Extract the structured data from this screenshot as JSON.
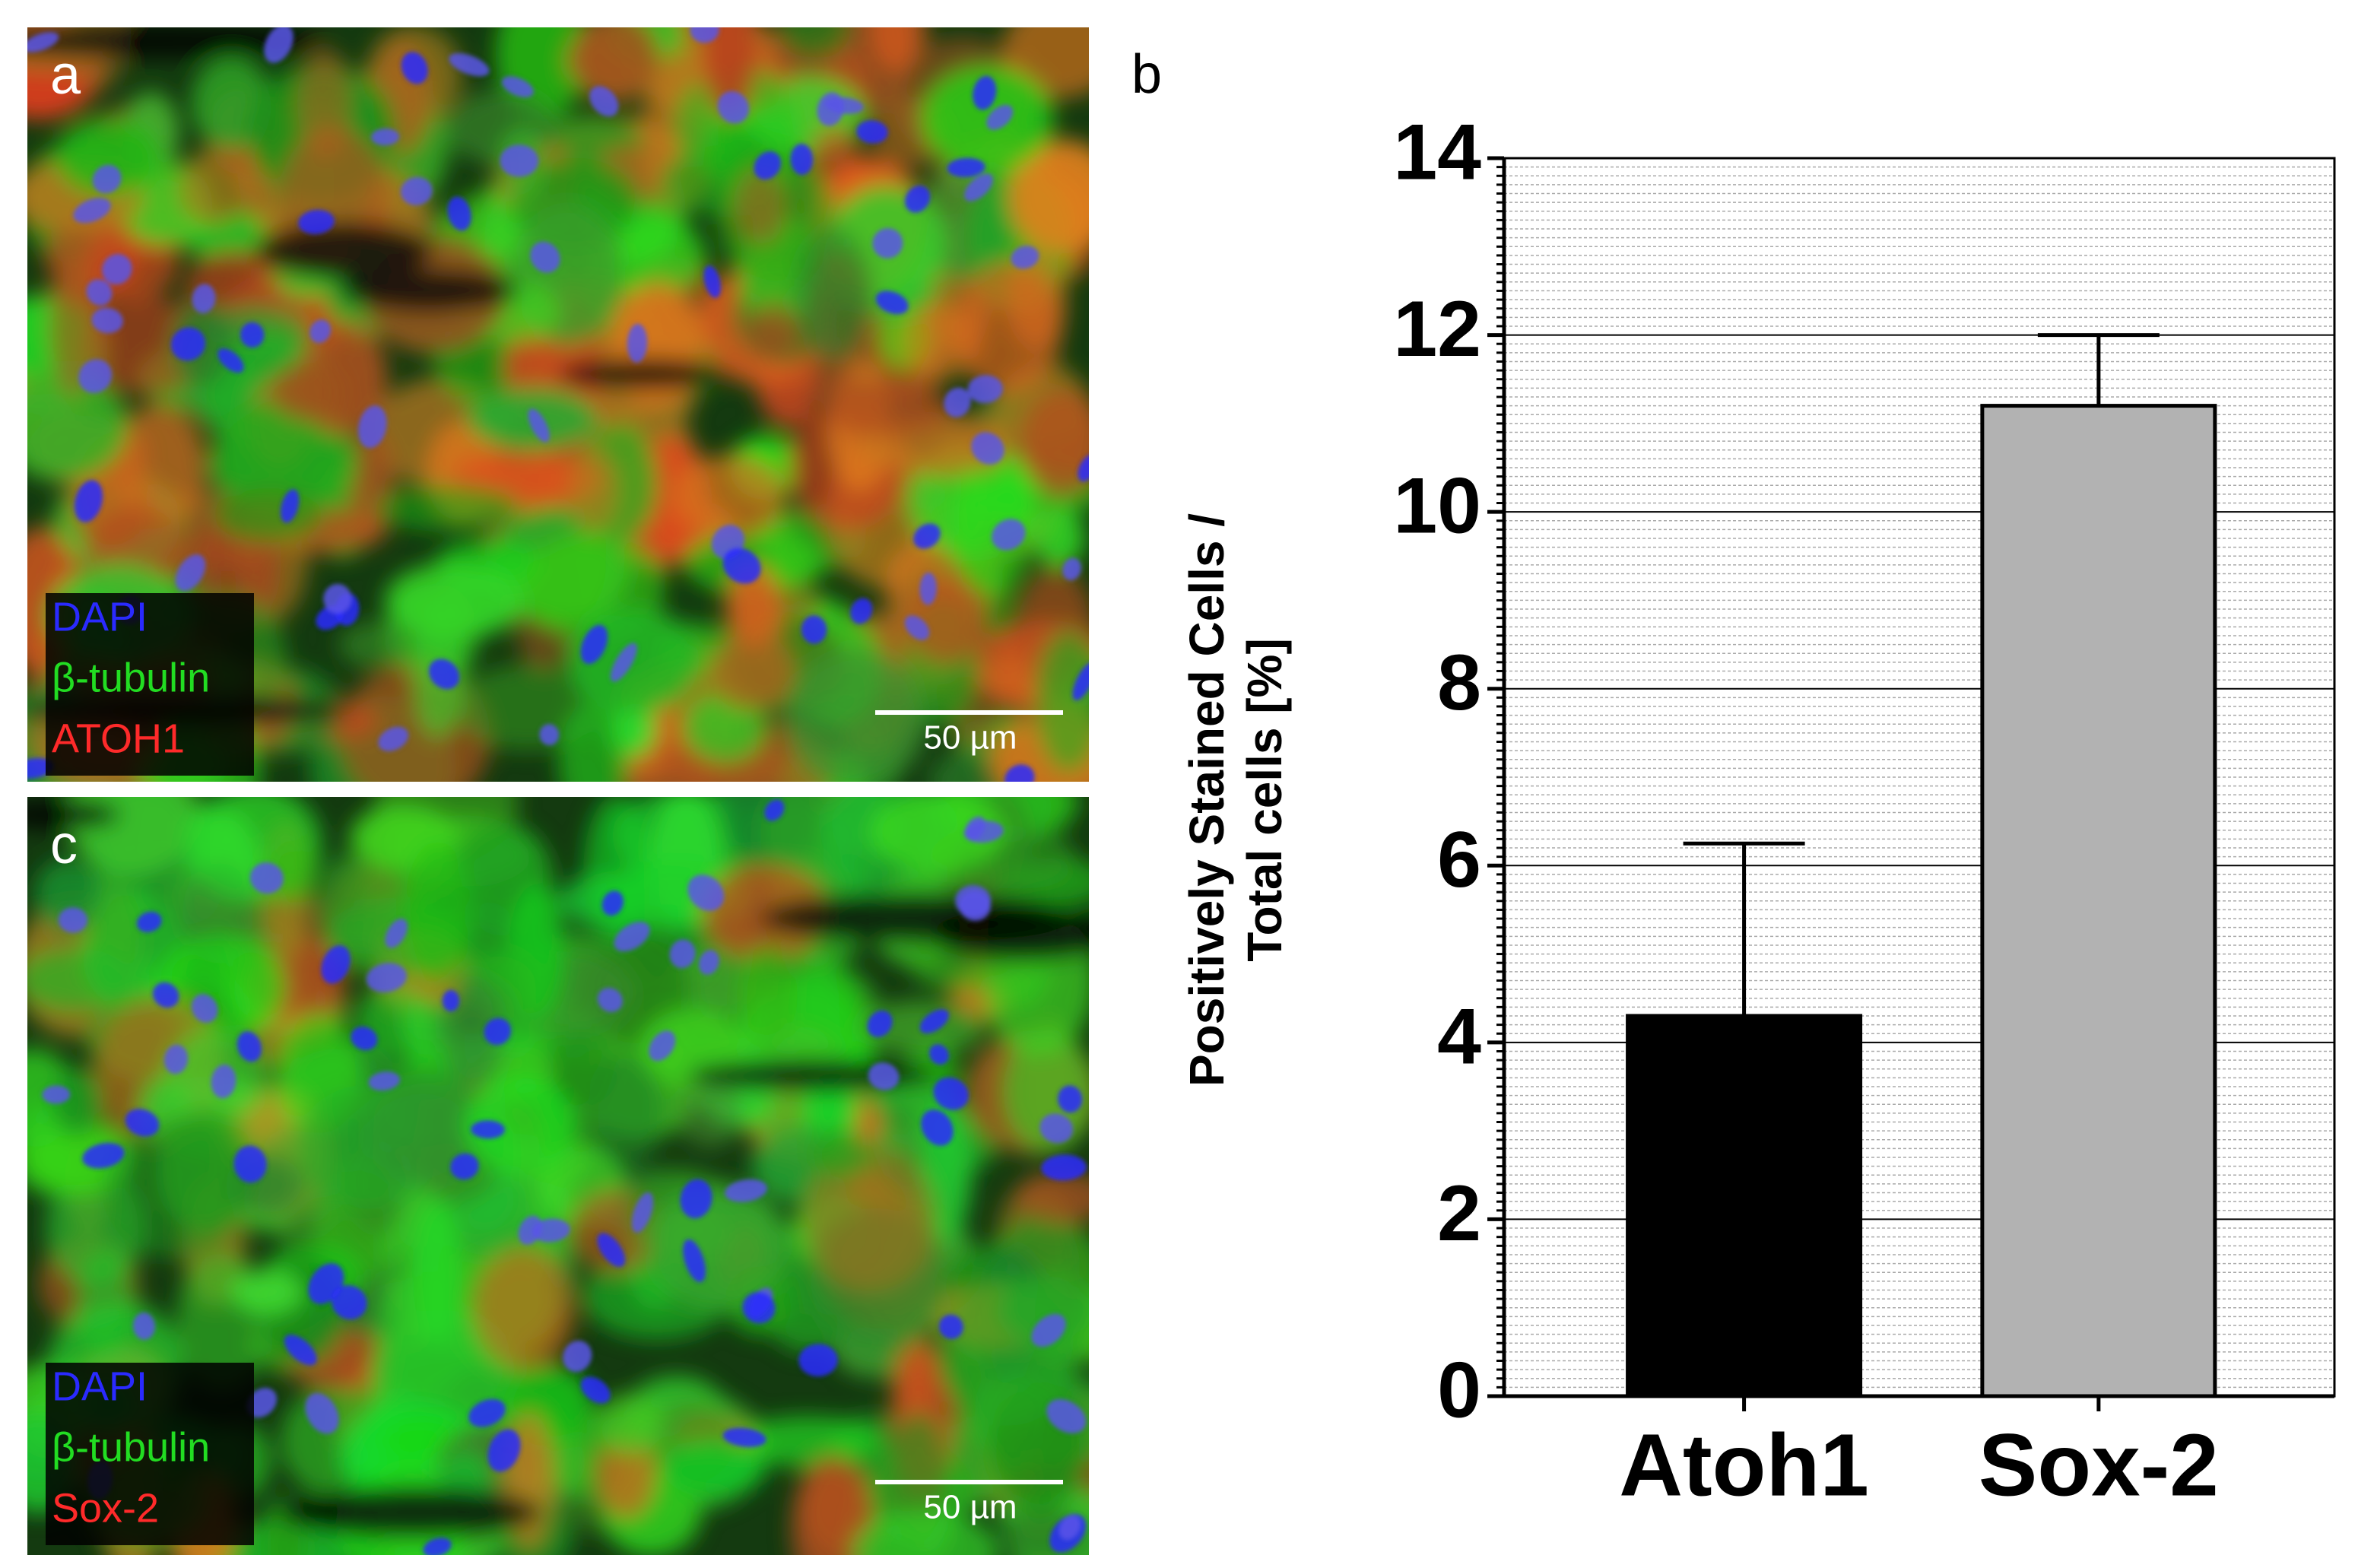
{
  "panels": [
    {
      "label": "a",
      "legend": [
        {
          "text": "DAPI",
          "color": "#2a2aff"
        },
        {
          "text": "β-tubulin",
          "color": "#22dd22"
        },
        {
          "text": "ATOH1",
          "color": "#ff2a2a"
        }
      ],
      "scale_bar": "50 µm",
      "red_level": 0.55
    },
    {
      "label": "c",
      "legend": [
        {
          "text": "DAPI",
          "color": "#2a2aff"
        },
        {
          "text": "β-tubulin",
          "color": "#22dd22"
        },
        {
          "text": "Sox-2",
          "color": "#ff2a2a"
        }
      ],
      "scale_bar": "50 µm",
      "red_level": 0.18
    }
  ],
  "chart_data": {
    "type": "bar",
    "panel_label": "b",
    "ylabel": [
      "Positively Stained Cells /",
      "Total cells [%]"
    ],
    "categories": [
      "Atoh1",
      "Sox-2"
    ],
    "values": [
      4.3,
      11.2
    ],
    "errors": [
      1.95,
      0.8
    ],
    "colors": [
      "#000000",
      "#b2b2b2"
    ],
    "ylim": [
      0,
      14
    ],
    "yticks": [
      0,
      2,
      4,
      6,
      8,
      10,
      12,
      14
    ],
    "yminor": 0.1,
    "grid": true
  }
}
